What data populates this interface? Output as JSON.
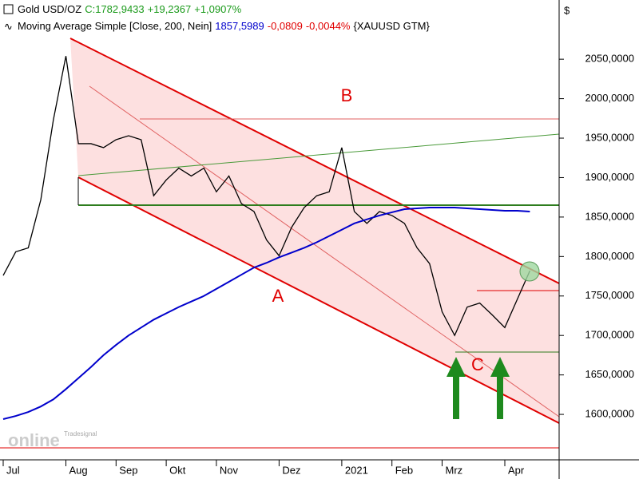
{
  "chart_data": {
    "type": "line",
    "y_unit": "$",
    "quote": {
      "close": "C:1782,9433",
      "change": "+19,2367",
      "change_pct": "+1,0907%"
    },
    "ma_stats": {
      "value": "1857,5989",
      "change": "-0,0809",
      "change_pct": "-0,0044%",
      "symbol": "{XAUUSD GTM}"
    },
    "annotations": [
      "A",
      "B",
      "C"
    ],
    "watermark": [
      "Tradesignal",
      "online"
    ],
    "categories": [
      "Jul",
      null,
      null,
      null,
      null,
      "Aug",
      null,
      null,
      null,
      "Sep",
      null,
      null,
      null,
      "Okt",
      null,
      null,
      null,
      "Nov",
      null,
      null,
      null,
      null,
      "Dez",
      null,
      null,
      null,
      null,
      "2021",
      null,
      null,
      null,
      "Feb",
      null,
      null,
      null,
      "Mrz",
      null,
      null,
      null,
      null,
      "Apr",
      null,
      null
    ],
    "series": [
      {
        "name": "Gold USD/OZ",
        "color": "#000000",
        "values": [
          1776,
          1806,
          1811,
          1872,
          1973,
          2054,
          1943,
          1943,
          1938,
          1948,
          1953,
          1948,
          1877,
          1897,
          1912,
          1902,
          1912,
          1882,
          1902,
          1867,
          1857,
          1821,
          1801,
          1837,
          1862,
          1877,
          1882,
          1938,
          1857,
          1842,
          1857,
          1852,
          1842,
          1811,
          1791,
          1730,
          1700,
          1736,
          1741,
          1726,
          1710,
          1746,
          1782
        ]
      },
      {
        "name": "Moving Average Simple [Close, 200, Nein]",
        "color": "#0000cc",
        "values": [
          1594,
          1598,
          1603,
          1610,
          1619,
          1632,
          1646,
          1660,
          1675,
          1688,
          1700,
          1710,
          1720,
          1728,
          1736,
          1743,
          1750,
          1759,
          1768,
          1777,
          1786,
          1792,
          1799,
          1805,
          1811,
          1818,
          1826,
          1834,
          1842,
          1847,
          1852,
          1856,
          1860,
          1861,
          1862,
          1862,
          1862,
          1861,
          1860,
          1859,
          1858,
          1858,
          1857
        ]
      }
    ],
    "ylim": [
      1550,
      2125
    ],
    "yticks": [
      {
        "value": 1600,
        "label": "1600,0000"
      },
      {
        "value": 1650,
        "label": "1650,0000"
      },
      {
        "value": 1700,
        "label": "1700,0000"
      },
      {
        "value": 1750,
        "label": "1750,0000"
      },
      {
        "value": 1800,
        "label": "1800,0000"
      },
      {
        "value": 1850,
        "label": "1850,0000"
      },
      {
        "value": 1900,
        "label": "1900,0000"
      },
      {
        "value": 1950,
        "label": "1950,0000"
      },
      {
        "value": 2000,
        "label": "2000,0000"
      },
      {
        "value": 2050,
        "label": "2050,0000"
      }
    ]
  }
}
